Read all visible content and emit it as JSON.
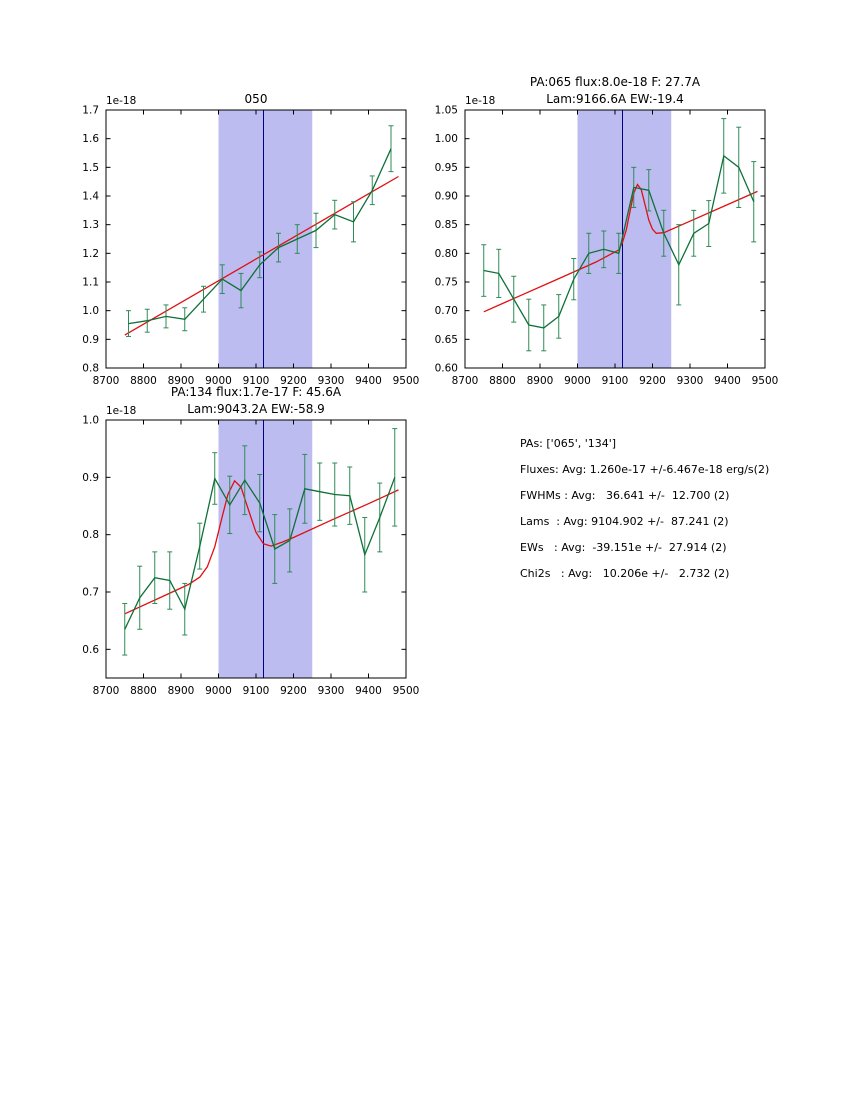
{
  "figure": {
    "colors": {
      "data_line": "#0f7038",
      "error_bar": "#2e8b57",
      "model_line": "#e01010",
      "band_fill": "#9090e8",
      "band_opacity": 0.6,
      "vline": "#00008b",
      "axis": "#000000",
      "background": "#ffffff"
    },
    "stats": {
      "lines": [
        "PAs: ['065', '134']",
        "Fluxes: Avg: 1.260e-17 +/-6.467e-18 erg/s(2)",
        "FWHMs : Avg:   36.641 +/-  12.700 (2)",
        "Lams  : Avg: 9104.902 +/-  87.241 (2)",
        "EWs   : Avg:  -39.151e +/-  27.914 (2)",
        "Chi2s   : Avg:   10.206e +/-   2.732 (2)"
      ]
    }
  },
  "chart_data": [
    {
      "type": "line",
      "name": "spectrum-050",
      "title_lines": [
        "050"
      ],
      "offset_label": "1e-18",
      "xlabel": "",
      "ylabel": "",
      "xlim": [
        8700,
        9500
      ],
      "ylim": [
        0.8,
        1.7
      ],
      "xticks": [
        8700,
        8800,
        8900,
        9000,
        9100,
        9200,
        9300,
        9400,
        9500
      ],
      "xtick_labels": [
        "8700",
        "8800",
        "8900",
        "9000",
        "9100",
        "9200",
        "9300",
        "9400",
        "9500"
      ],
      "yticks": [
        0.8,
        0.9,
        1.0,
        1.1,
        1.2,
        1.3,
        1.4,
        1.5,
        1.6,
        1.7
      ],
      "ytick_labels": [
        "0.8",
        "0.9",
        "1.0",
        "1.1",
        "1.2",
        "1.3",
        "1.4",
        "1.5",
        "1.6",
        "1.7"
      ],
      "band": [
        9000,
        9250
      ],
      "vline": 9120,
      "grid": false,
      "series": {
        "data": {
          "x": [
            8760,
            8810,
            8860,
            8910,
            8960,
            9010,
            9060,
            9110,
            9160,
            9210,
            9260,
            9310,
            9360,
            9410,
            9460
          ],
          "y": [
            0.955,
            0.965,
            0.98,
            0.97,
            1.04,
            1.11,
            1.07,
            1.16,
            1.22,
            1.25,
            1.28,
            1.335,
            1.31,
            1.42,
            1.565
          ],
          "yerr": [
            0.045,
            0.04,
            0.04,
            0.04,
            0.045,
            0.05,
            0.06,
            0.045,
            0.05,
            0.05,
            0.06,
            0.05,
            0.07,
            0.05,
            0.08
          ]
        },
        "model": {
          "points": [
            [
              8750,
              0.915
            ],
            [
              9480,
              1.468
            ]
          ]
        }
      }
    },
    {
      "type": "line",
      "name": "spectrum-pa065",
      "title_lines": [
        "PA:065 flux:8.0e-18 F: 27.7A",
        "Lam:9166.6A EW:-19.4"
      ],
      "offset_label": "1e-18",
      "xlabel": "",
      "ylabel": "",
      "xlim": [
        8700,
        9500
      ],
      "ylim": [
        0.6,
        1.05
      ],
      "xticks": [
        8700,
        8800,
        8900,
        9000,
        9100,
        9200,
        9300,
        9400,
        9500
      ],
      "xtick_labels": [
        "8700",
        "8800",
        "8900",
        "9000",
        "9100",
        "9200",
        "9300",
        "9400",
        "9500"
      ],
      "yticks": [
        0.6,
        0.65,
        0.7,
        0.75,
        0.8,
        0.85,
        0.9,
        0.95,
        1.0,
        1.05
      ],
      "ytick_labels": [
        "0.60",
        "0.65",
        "0.70",
        "0.75",
        "0.80",
        "0.85",
        "0.90",
        "0.95",
        "1.00",
        "1.05"
      ],
      "band": [
        9000,
        9250
      ],
      "vline": 9120,
      "grid": false,
      "series": {
        "data": {
          "x": [
            8750,
            8790,
            8830,
            8870,
            8910,
            8950,
            8990,
            9030,
            9070,
            9110,
            9150,
            9190,
            9230,
            9270,
            9310,
            9350,
            9390,
            9430,
            9470
          ],
          "y": [
            0.77,
            0.765,
            0.72,
            0.675,
            0.67,
            0.69,
            0.755,
            0.8,
            0.807,
            0.8,
            0.915,
            0.91,
            0.835,
            0.78,
            0.835,
            0.852,
            0.97,
            0.95,
            0.89
          ],
          "yerr": [
            0.045,
            0.042,
            0.04,
            0.045,
            0.04,
            0.038,
            0.036,
            0.035,
            0.032,
            0.035,
            0.035,
            0.036,
            0.04,
            0.07,
            0.04,
            0.04,
            0.065,
            0.07,
            0.07
          ]
        },
        "model": {
          "points": [
            [
              8750,
              0.698
            ],
            [
              8850,
              0.727
            ],
            [
              8950,
              0.756
            ],
            [
              9050,
              0.785
            ],
            [
              9110,
              0.806
            ],
            [
              9120,
              0.819
            ],
            [
              9130,
              0.841
            ],
            [
              9140,
              0.873
            ],
            [
              9150,
              0.905
            ],
            [
              9160,
              0.92
            ],
            [
              9170,
              0.911
            ],
            [
              9180,
              0.885
            ],
            [
              9190,
              0.858
            ],
            [
              9200,
              0.842
            ],
            [
              9210,
              0.835
            ],
            [
              9230,
              0.836
            ],
            [
              9300,
              0.856
            ],
            [
              9400,
              0.885
            ],
            [
              9480,
              0.908
            ]
          ]
        }
      }
    },
    {
      "type": "line",
      "name": "spectrum-pa134",
      "title_lines": [
        "PA:134 flux:1.7e-17 F: 45.6A",
        "Lam:9043.2A EW:-58.9"
      ],
      "offset_label": "1e-18",
      "xlabel": "",
      "ylabel": "",
      "xlim": [
        8700,
        9500
      ],
      "ylim": [
        0.55,
        1.0
      ],
      "xticks": [
        8700,
        8800,
        8900,
        9000,
        9100,
        9200,
        9300,
        9400,
        9500
      ],
      "xtick_labels": [
        "8700",
        "8800",
        "8900",
        "9000",
        "9100",
        "9200",
        "9300",
        "9400",
        "9500"
      ],
      "yticks": [
        0.6,
        0.7,
        0.8,
        0.9,
        1.0
      ],
      "ytick_labels": [
        "0.6",
        "0.7",
        "0.8",
        "0.9",
        "1.0"
      ],
      "band": [
        9000,
        9250
      ],
      "vline": 9120,
      "grid": false,
      "series": {
        "data": {
          "x": [
            8750,
            8790,
            8830,
            8870,
            8910,
            8950,
            8990,
            9030,
            9070,
            9110,
            9150,
            9190,
            9230,
            9270,
            9310,
            9350,
            9390,
            9430,
            9470
          ],
          "y": [
            0.635,
            0.69,
            0.725,
            0.72,
            0.67,
            0.78,
            0.898,
            0.852,
            0.895,
            0.855,
            0.775,
            0.79,
            0.88,
            0.875,
            0.87,
            0.868,
            0.765,
            0.83,
            0.9
          ],
          "yerr": [
            0.045,
            0.055,
            0.045,
            0.05,
            0.045,
            0.04,
            0.045,
            0.05,
            0.06,
            0.05,
            0.06,
            0.055,
            0.06,
            0.05,
            0.055,
            0.05,
            0.065,
            0.06,
            0.085
          ]
        },
        "model": {
          "points": [
            [
              8750,
              0.662
            ],
            [
              8850,
              0.692
            ],
            [
              8920,
              0.713
            ],
            [
              8950,
              0.726
            ],
            [
              8970,
              0.744
            ],
            [
              8990,
              0.779
            ],
            [
              9010,
              0.832
            ],
            [
              9025,
              0.87
            ],
            [
              9043,
              0.894
            ],
            [
              9060,
              0.883
            ],
            [
              9080,
              0.843
            ],
            [
              9100,
              0.804
            ],
            [
              9120,
              0.784
            ],
            [
              9140,
              0.78
            ],
            [
              9170,
              0.787
            ],
            [
              9200,
              0.795
            ],
            [
              9300,
              0.825
            ],
            [
              9400,
              0.854
            ],
            [
              9480,
              0.878
            ]
          ]
        }
      }
    }
  ]
}
